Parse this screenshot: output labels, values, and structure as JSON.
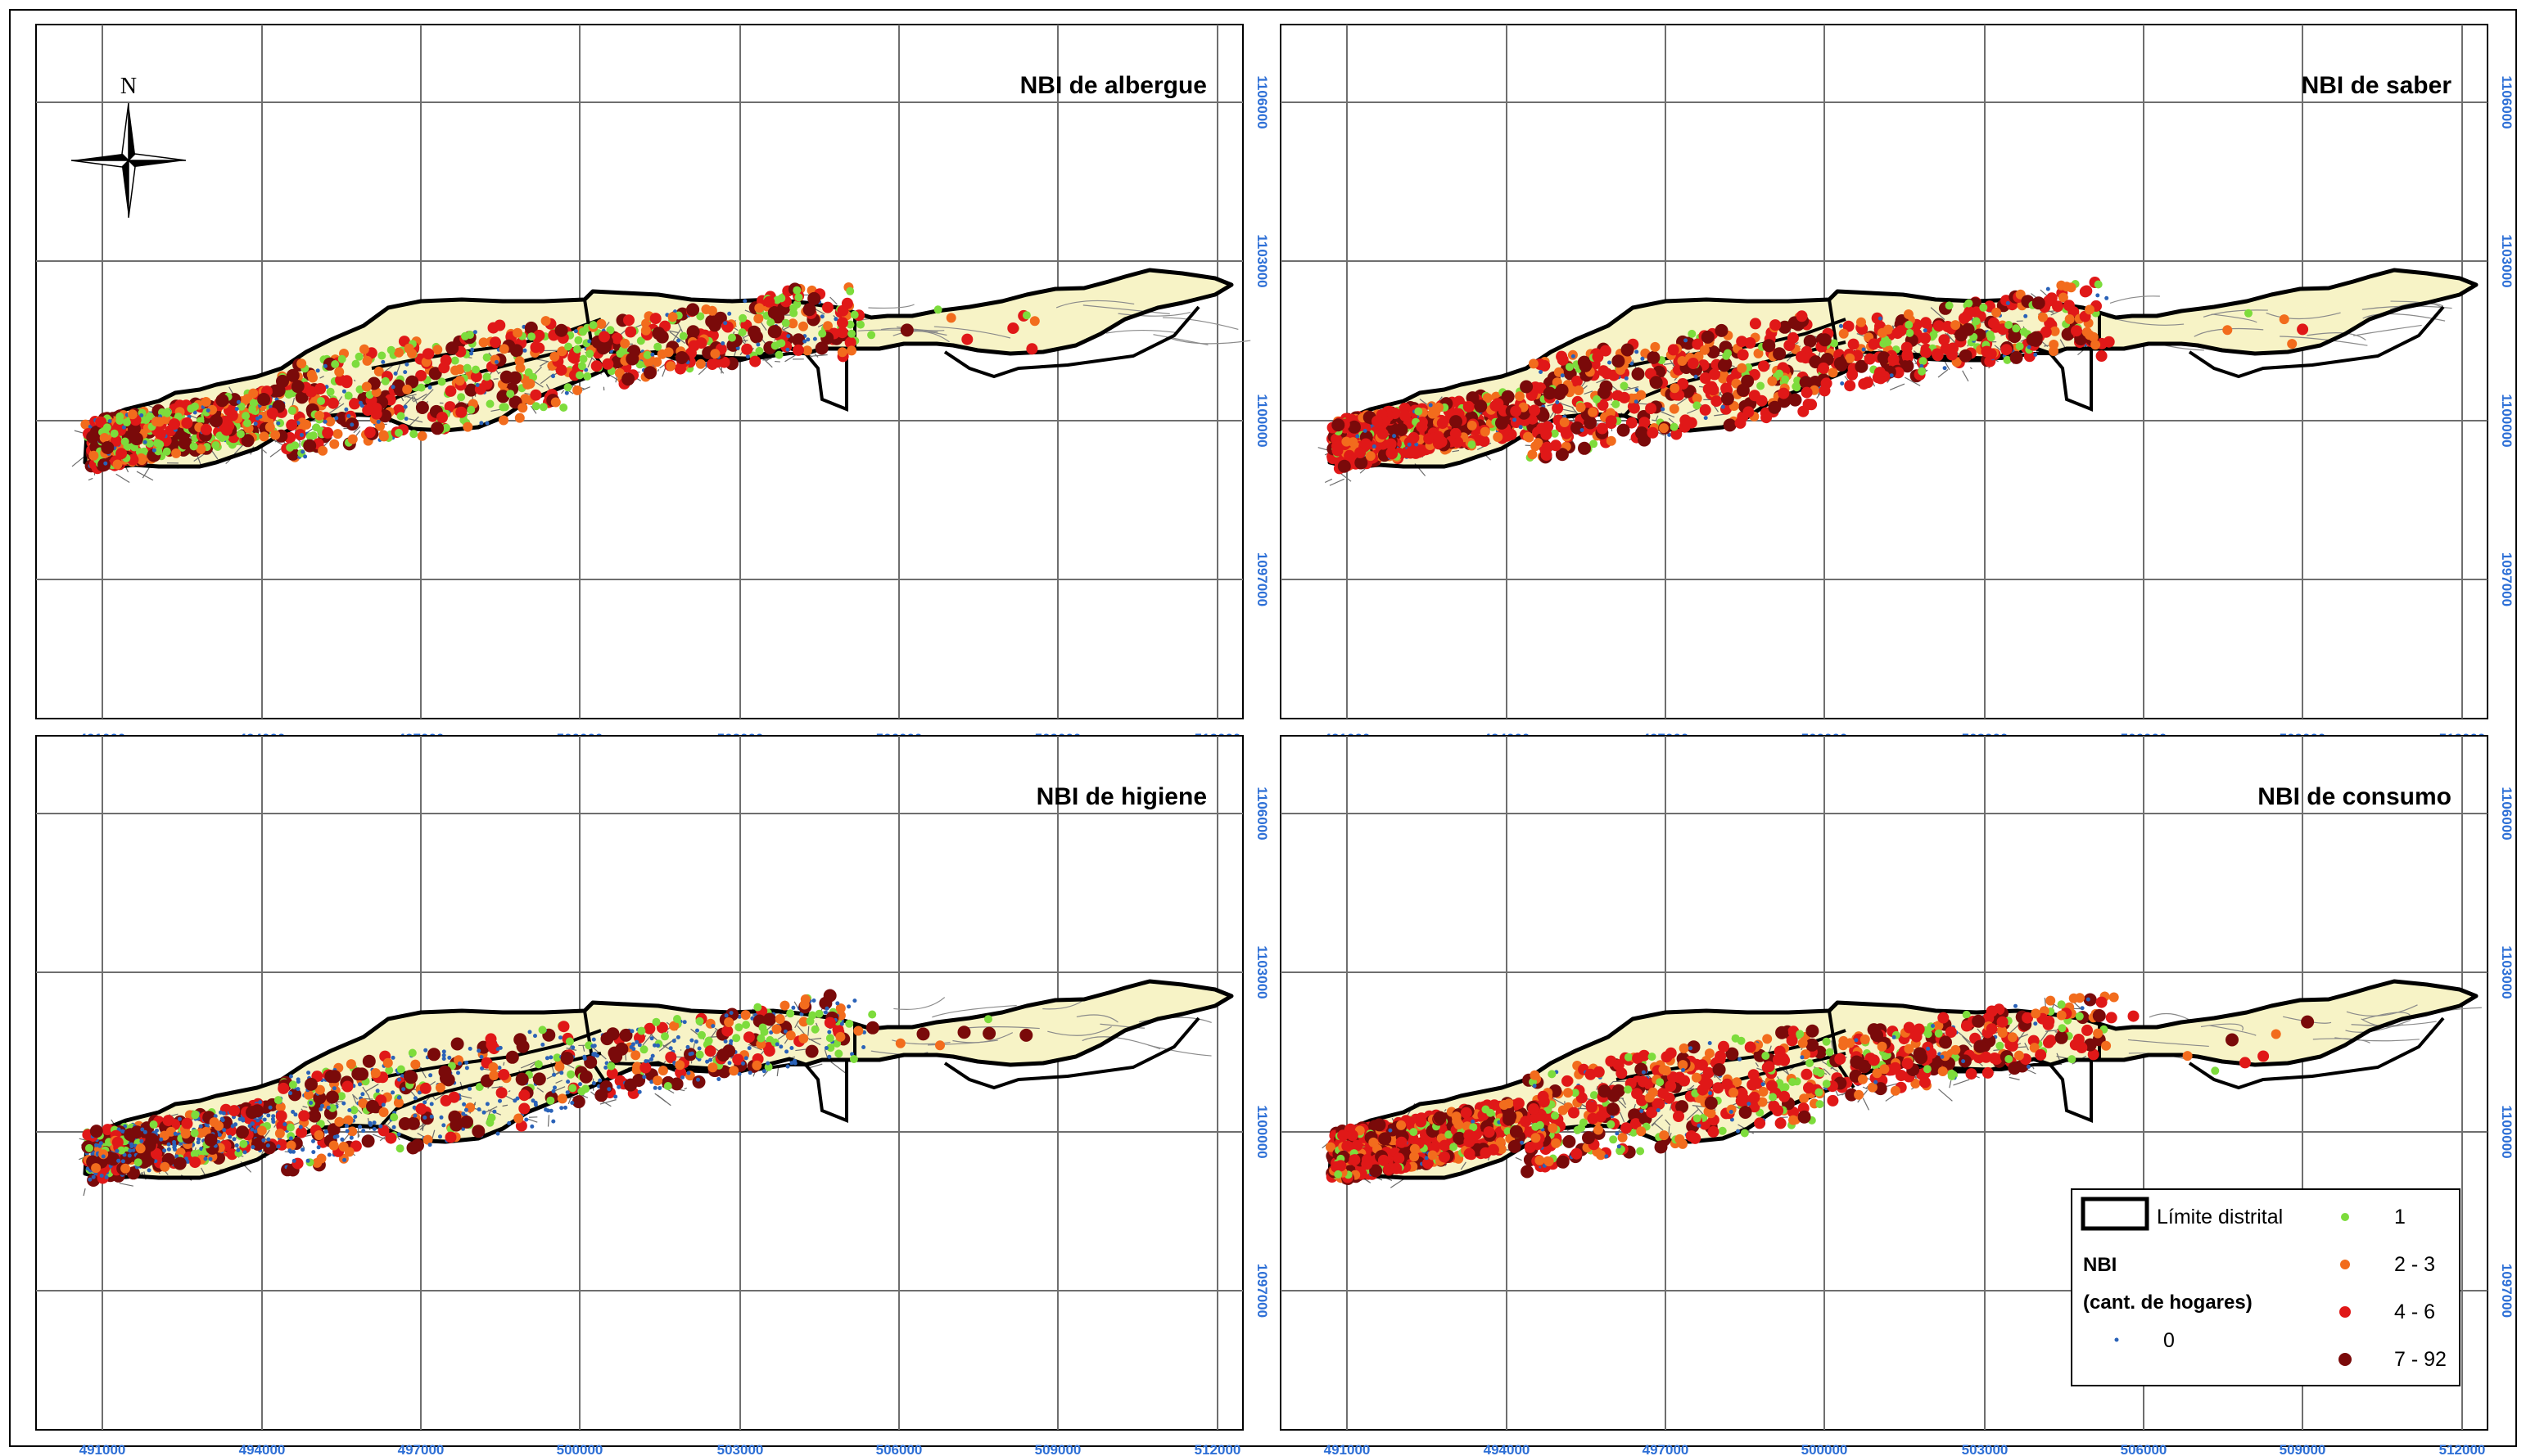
{
  "panels": [
    {
      "title": "NBI de albergue",
      "profile": "albergue"
    },
    {
      "title": "NBI de saber",
      "profile": "saber"
    },
    {
      "title": "NBI de higiene",
      "profile": "higiene"
    },
    {
      "title": "NBI de consumo",
      "profile": "consumo"
    }
  ],
  "x_ticks": [
    "491000",
    "494000",
    "497000",
    "500000",
    "503000",
    "506000",
    "509000",
    "512000"
  ],
  "y_ticks": [
    "1106000",
    "1103000",
    "1100000",
    "1097000"
  ],
  "north_label": "N",
  "legend": {
    "boundary_label": "Límite distrital",
    "title": "NBI",
    "subtitle": "(cant. de hogares)",
    "classes": [
      {
        "label": "0",
        "color": "#2a62b8"
      },
      {
        "label": "1",
        "color": "#7ddc3c"
      },
      {
        "label": "2 - 3",
        "color": "#f26c1d"
      },
      {
        "label": "4 - 6",
        "color": "#e01818"
      },
      {
        "label": "7 - 92",
        "color": "#7a0a0a"
      }
    ]
  },
  "colors": {
    "territory_fill": "#f7f3c6",
    "boundary": "#000000",
    "grid": "#6e6e6e",
    "tick_label": "#2d6fd6",
    "streets": "#6b6b6b"
  }
}
